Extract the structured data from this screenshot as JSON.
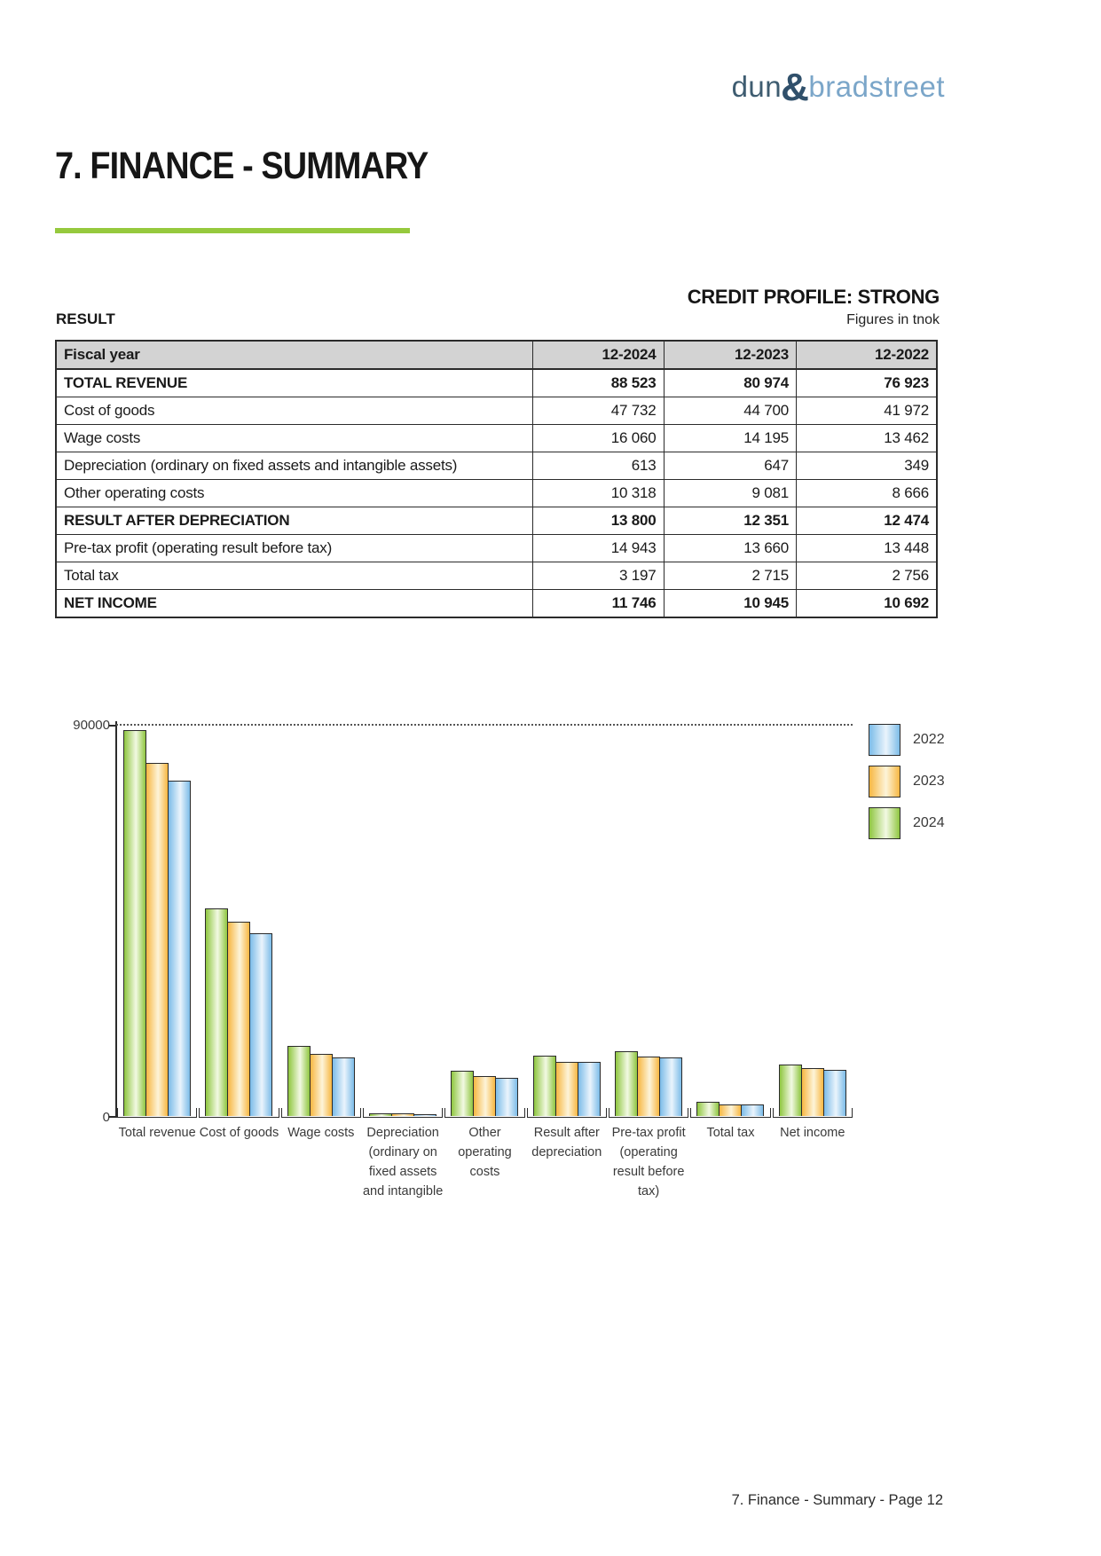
{
  "header": {
    "logo": {
      "dun": "dun",
      "amp": "&",
      "bradstreet": "bradstreet"
    }
  },
  "page_title": "7. FINANCE - SUMMARY",
  "credit_profile": "CREDIT PROFILE: STRONG",
  "section_label": "RESULT",
  "figures_note": "Figures in tnok",
  "table": {
    "columns": [
      "Fiscal year",
      "12-2024",
      "12-2023",
      "12-2022"
    ],
    "rows": [
      {
        "label": "TOTAL REVENUE",
        "values": [
          "88 523",
          "80 974",
          "76 923"
        ],
        "bold": true
      },
      {
        "label": "Cost of goods",
        "values": [
          "47 732",
          "44 700",
          "41 972"
        ],
        "bold": false
      },
      {
        "label": "Wage costs",
        "values": [
          "16 060",
          "14 195",
          "13 462"
        ],
        "bold": false
      },
      {
        "label": "Depreciation (ordinary on fixed assets and intangible assets)",
        "values": [
          "613",
          "647",
          "349"
        ],
        "bold": false
      },
      {
        "label": "Other operating costs",
        "values": [
          "10 318",
          "9 081",
          "8 666"
        ],
        "bold": false
      },
      {
        "label": "RESULT AFTER DEPRECIATION",
        "values": [
          "13 800",
          "12 351",
          "12 474"
        ],
        "bold": true
      },
      {
        "label": "Pre-tax profit (operating result before tax)",
        "values": [
          "14 943",
          "13 660",
          "13 448"
        ],
        "bold": false
      },
      {
        "label": "Total tax",
        "values": [
          "3 197",
          "2 715",
          "2 756"
        ],
        "bold": false
      },
      {
        "label": "NET INCOME",
        "values": [
          "11 746",
          "10 945",
          "10 692"
        ],
        "bold": true
      }
    ]
  },
  "chart_data": {
    "type": "bar",
    "title": "",
    "xlabel": "",
    "ylabel": "",
    "ylim": [
      0,
      90000
    ],
    "yticks_shown": [
      "90000",
      "0"
    ],
    "grid": "dotted horizontal gridline at 90000 only",
    "legend_position": "top-right",
    "legend_order": [
      "2022",
      "2023",
      "2024"
    ],
    "bar_order": [
      "2024",
      "2023",
      "2022"
    ],
    "categories": [
      "Total revenue",
      "Cost of goods",
      "Wage costs",
      "Depreciation (ordinary on fixed assets and intangible",
      "Other operating costs",
      "Result after depreciation",
      "Pre-tax profit (operating result before tax)",
      "Total tax",
      "Net income"
    ],
    "category_label_lines": [
      [
        "Total revenue"
      ],
      [
        "Cost of goods"
      ],
      [
        "Wage costs"
      ],
      [
        "Depreciation",
        "(ordinary on",
        "fixed assets",
        "and intangible"
      ],
      [
        "Other",
        "operating",
        "costs"
      ],
      [
        "Result after",
        "depreciation"
      ],
      [
        "Pre-tax profit",
        "(operating",
        "result before",
        "tax)"
      ],
      [
        "Total tax"
      ],
      [
        "Net income"
      ]
    ],
    "series": [
      {
        "name": "2024",
        "edge_color": "#8FC640",
        "mid_color": "#F2F9E3",
        "values": [
          88523,
          47732,
          16060,
          613,
          10318,
          13800,
          14943,
          3197,
          11746
        ]
      },
      {
        "name": "2023",
        "edge_color": "#F7B742",
        "mid_color": "#FDF4D9",
        "values": [
          80974,
          44700,
          14195,
          647,
          9081,
          12351,
          13660,
          2715,
          10945
        ]
      },
      {
        "name": "2022",
        "edge_color": "#7CBCE8",
        "mid_color": "#EAF4FC",
        "values": [
          76923,
          41972,
          13462,
          349,
          8666,
          12474,
          13448,
          2756,
          10692
        ]
      }
    ]
  },
  "footer": {
    "text": "7. Finance - Summary - Page 12"
  },
  "colors": {
    "accent_green": "#96C93D",
    "table_header_bg": "#D3D3D3",
    "logo_dark": "#3E5C70",
    "logo_amp": "#30506B",
    "logo_light": "#7BA6C9"
  }
}
